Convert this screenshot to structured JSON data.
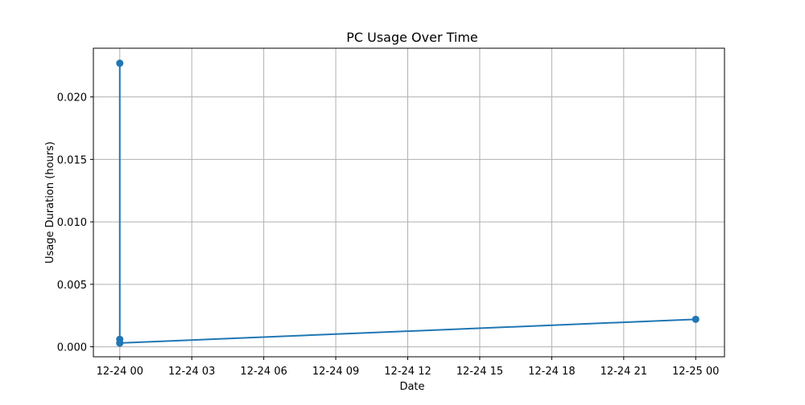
{
  "chart_data": {
    "type": "line",
    "title": "PC Usage Over Time",
    "xlabel": "Date",
    "ylabel": "Usage Duration (hours)",
    "x_ticks": [
      "12-24 00",
      "12-24 03",
      "12-24 06",
      "12-24 09",
      "12-24 12",
      "12-24 15",
      "12-24 18",
      "12-24 21",
      "12-25 00"
    ],
    "y_ticks": [
      "0.000",
      "0.005",
      "0.010",
      "0.015",
      "0.020"
    ],
    "x_tick_hours": [
      0,
      3,
      6,
      9,
      12,
      15,
      18,
      21,
      24
    ],
    "y_tick_values": [
      0,
      0.005,
      0.01,
      0.015,
      0.02
    ],
    "xlim_hours": [
      -1.1,
      25.2
    ],
    "ylim": [
      -0.0008,
      0.0239
    ],
    "grid": true,
    "series": [
      {
        "color": "#1f77b4",
        "marker": "circle",
        "x_hours": [
          0,
          0,
          0,
          0,
          24
        ],
        "x_dates": [
          "12-24 00",
          "12-24 00",
          "12-24 00",
          "12-24 00",
          "12-25 00"
        ],
        "y": [
          0.0227,
          0.0006,
          0.0003,
          0.0003,
          0.0022
        ]
      }
    ]
  }
}
